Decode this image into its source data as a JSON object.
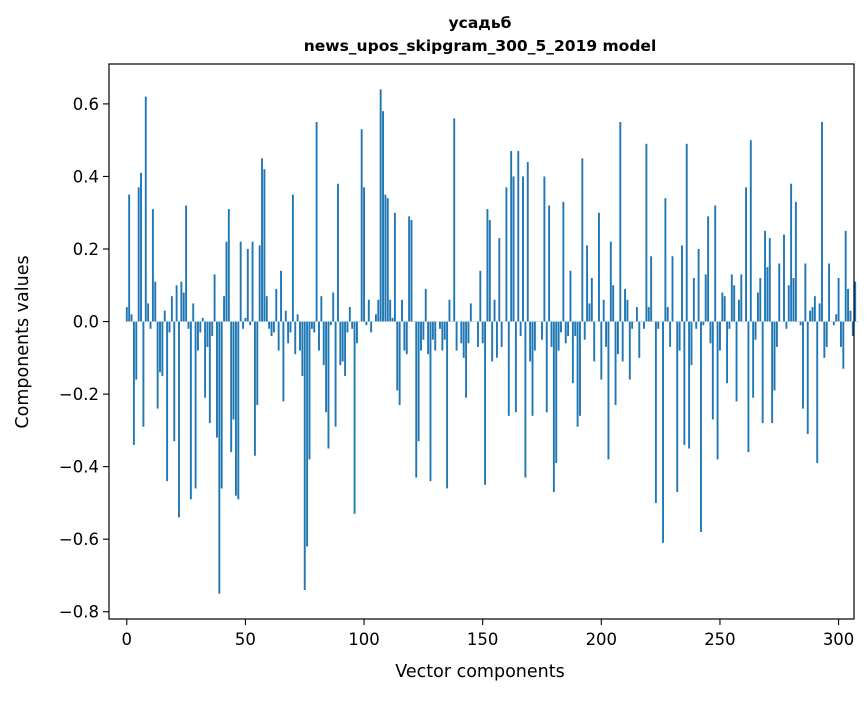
{
  "chart_data": {
    "type": "bar",
    "title_line1": "усадьб",
    "title_line2": "news_upos_skipgram_300_5_2019 model",
    "xlabel": "Vector components",
    "ylabel": "Components values",
    "xlim": [
      -7.5,
      306.5
    ],
    "ylim": [
      -0.82,
      0.71
    ],
    "xticks": [
      0,
      50,
      100,
      150,
      200,
      250,
      300
    ],
    "xtick_labels": [
      "0",
      "50",
      "100",
      "150",
      "200",
      "250",
      "300"
    ],
    "yticks": [
      -0.8,
      -0.6,
      -0.4,
      -0.2,
      0.0,
      0.2,
      0.4,
      0.6
    ],
    "ytick_labels": [
      "−0.8",
      "−0.6",
      "−0.4",
      "−0.2",
      "0.0",
      "0.2",
      "0.4",
      "0.6"
    ],
    "bar_color": "#1f77b4",
    "grid": false,
    "values": [
      0.04,
      0.35,
      0.02,
      -0.34,
      -0.16,
      0.37,
      0.41,
      -0.29,
      0.62,
      0.05,
      -0.02,
      0.31,
      0.11,
      -0.24,
      -0.14,
      -0.15,
      0.03,
      -0.44,
      -0.03,
      0.07,
      -0.33,
      0.1,
      -0.54,
      0.11,
      0.08,
      0.32,
      -0.02,
      -0.49,
      0.05,
      -0.46,
      -0.08,
      -0.03,
      0.01,
      -0.21,
      -0.07,
      -0.28,
      -0.04,
      0.13,
      -0.32,
      -0.75,
      -0.46,
      0.07,
      0.22,
      0.31,
      -0.36,
      -0.27,
      -0.48,
      -0.49,
      0.22,
      -0.02,
      0.01,
      0.2,
      -0.01,
      0.22,
      -0.37,
      -0.23,
      0.21,
      0.45,
      0.42,
      0.07,
      -0.02,
      -0.04,
      -0.03,
      0.09,
      -0.08,
      0.14,
      -0.22,
      0.03,
      -0.06,
      -0.03,
      0.35,
      -0.09,
      0.02,
      -0.08,
      -0.15,
      -0.74,
      -0.62,
      -0.38,
      -0.02,
      -0.03,
      0.55,
      -0.08,
      0.07,
      -0.12,
      -0.25,
      -0.35,
      -0.01,
      0.08,
      -0.29,
      0.38,
      -0.12,
      -0.11,
      -0.15,
      -0.03,
      0.04,
      -0.02,
      -0.53,
      -0.06,
      0.0,
      0.53,
      0.37,
      -0.01,
      0.06,
      -0.03,
      0.0,
      0.02,
      0.06,
      0.64,
      0.58,
      0.35,
      0.34,
      0.06,
      0.01,
      0.3,
      -0.19,
      -0.23,
      0.06,
      -0.08,
      -0.09,
      0.29,
      0.28,
      0.0,
      -0.43,
      -0.33,
      -0.08,
      -0.05,
      0.09,
      -0.09,
      -0.44,
      -0.05,
      -0.08,
      0.0,
      -0.02,
      -0.08,
      -0.05,
      -0.46,
      0.06,
      0.0,
      0.56,
      -0.08,
      0.0,
      -0.06,
      -0.1,
      -0.21,
      -0.06,
      0.05,
      0.0,
      0.0,
      -0.07,
      0.14,
      -0.06,
      -0.45,
      0.31,
      0.28,
      -0.11,
      0.06,
      -0.1,
      0.23,
      -0.07,
      0.0,
      0.37,
      -0.26,
      0.47,
      0.4,
      -0.25,
      0.47,
      -0.04,
      0.4,
      -0.43,
      0.44,
      -0.11,
      -0.26,
      -0.08,
      0.0,
      0.0,
      -0.05,
      0.4,
      -0.25,
      0.32,
      -0.07,
      -0.47,
      -0.39,
      -0.08,
      -0.03,
      0.33,
      -0.06,
      -0.04,
      0.14,
      -0.17,
      -0.04,
      -0.29,
      -0.26,
      0.45,
      -0.05,
      0.21,
      0.05,
      0.12,
      -0.11,
      0.0,
      0.3,
      -0.16,
      0.06,
      -0.07,
      -0.38,
      0.22,
      0.1,
      -0.23,
      -0.09,
      0.55,
      -0.11,
      0.09,
      0.06,
      -0.16,
      -0.02,
      0.0,
      0.04,
      -0.1,
      0.0,
      -0.02,
      0.49,
      0.04,
      0.18,
      0.0,
      -0.5,
      -0.02,
      0.0,
      -0.61,
      0.34,
      0.04,
      -0.07,
      0.18,
      0.0,
      -0.47,
      -0.08,
      0.21,
      -0.34,
      0.49,
      -0.35,
      -0.12,
      0.12,
      -0.02,
      0.2,
      -0.58,
      -0.01,
      0.13,
      0.29,
      -0.06,
      -0.27,
      0.32,
      -0.38,
      -0.08,
      0.08,
      0.07,
      -0.17,
      -0.02,
      0.13,
      0.1,
      -0.22,
      0.06,
      0.13,
      0.0,
      0.37,
      -0.36,
      0.5,
      -0.21,
      -0.05,
      0.08,
      0.12,
      -0.28,
      0.25,
      0.15,
      0.23,
      -0.28,
      -0.19,
      -0.07,
      0.16,
      0.0,
      0.24,
      -0.02,
      0.1,
      0.38,
      0.12,
      0.33,
      0.0,
      -0.01,
      -0.24,
      0.16,
      -0.31,
      0.03,
      0.04,
      0.07,
      -0.39,
      0.05,
      0.55,
      -0.1,
      -0.07,
      0.16,
      0.0,
      -0.01,
      0.02,
      0.12,
      -0.07,
      -0.13,
      0.25,
      0.09,
      0.03,
      -0.04,
      0.11,
      0.0
    ]
  }
}
